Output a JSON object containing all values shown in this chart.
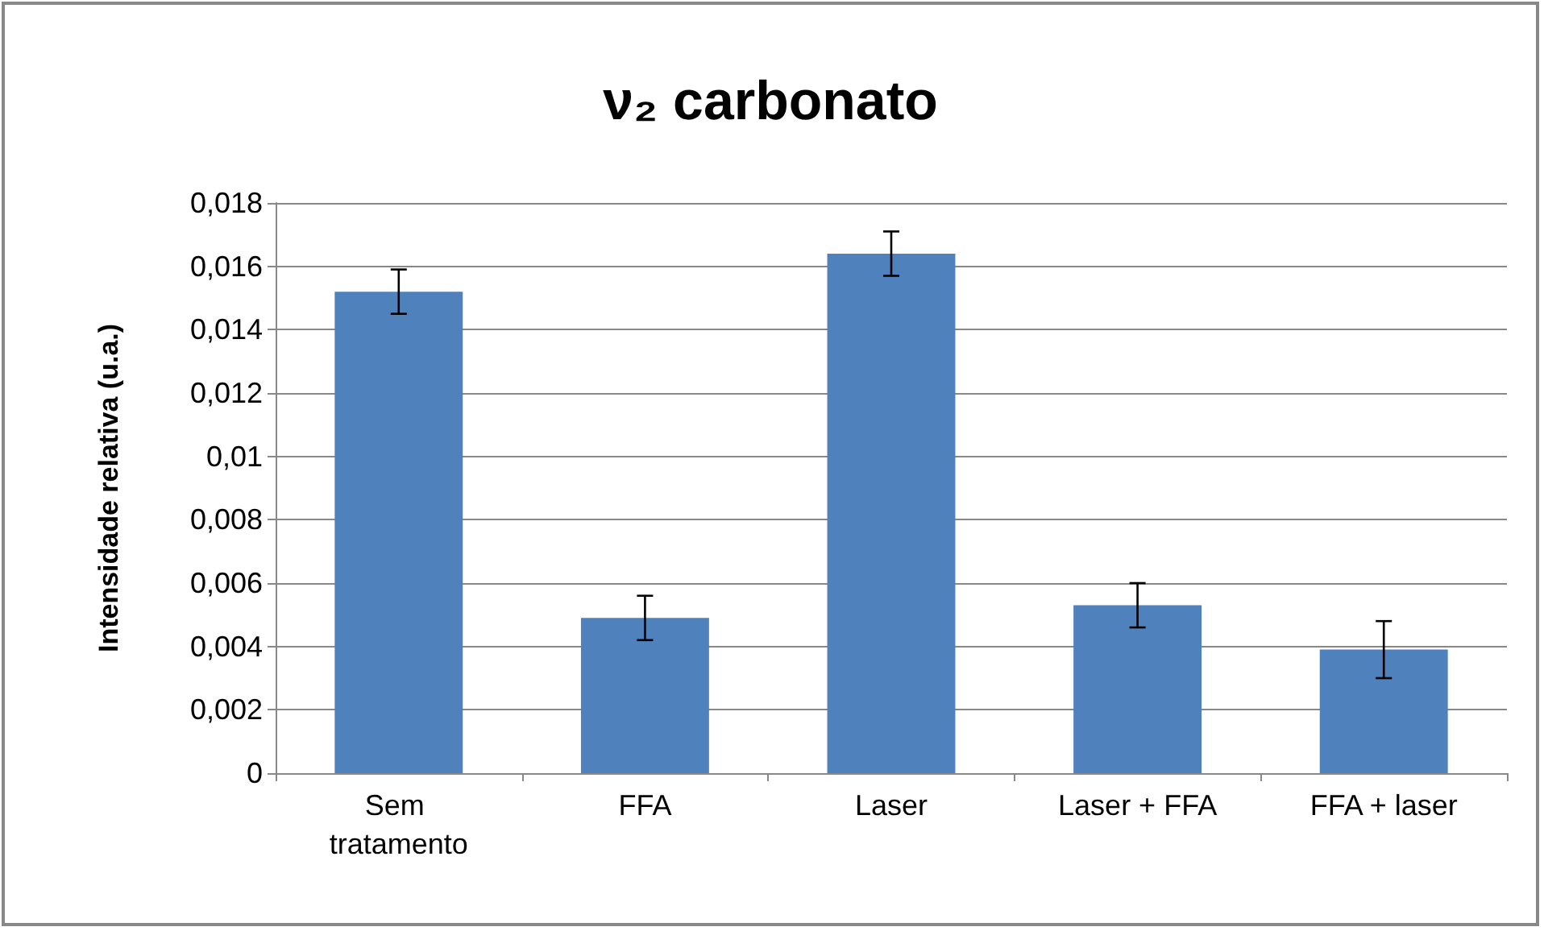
{
  "chart_data": {
    "type": "bar",
    "title": "ν₂ carbonato",
    "ylabel": "Intensidade relativa (u.a.)",
    "categories": [
      "Sem tratamento",
      "FFA",
      "Laser",
      "Laser + FFA",
      "FFA + laser"
    ],
    "values": [
      0.0152,
      0.0049,
      0.0164,
      0.0053,
      0.0039
    ],
    "errors": [
      0.0007,
      0.0007,
      0.0007,
      0.0007,
      0.0009
    ],
    "color": "#4f81bd",
    "ylim": [
      0,
      0.018
    ],
    "yticks": [
      0,
      {
        "value": 0.002,
        "label": "0,002"
      },
      {
        "value": 0.004,
        "label": "0,004"
      },
      {
        "value": 0.006,
        "label": "0,006"
      },
      {
        "value": 0.008,
        "label": "0,008"
      },
      {
        "value": 0.01,
        "label": "0,01"
      },
      {
        "value": 0.012,
        "label": "0,012"
      },
      {
        "value": 0.014,
        "label": "0,014"
      },
      {
        "value": 0.016,
        "label": "0,016"
      },
      {
        "value": 0.018,
        "label": "0,018"
      }
    ],
    "grid": "y"
  }
}
